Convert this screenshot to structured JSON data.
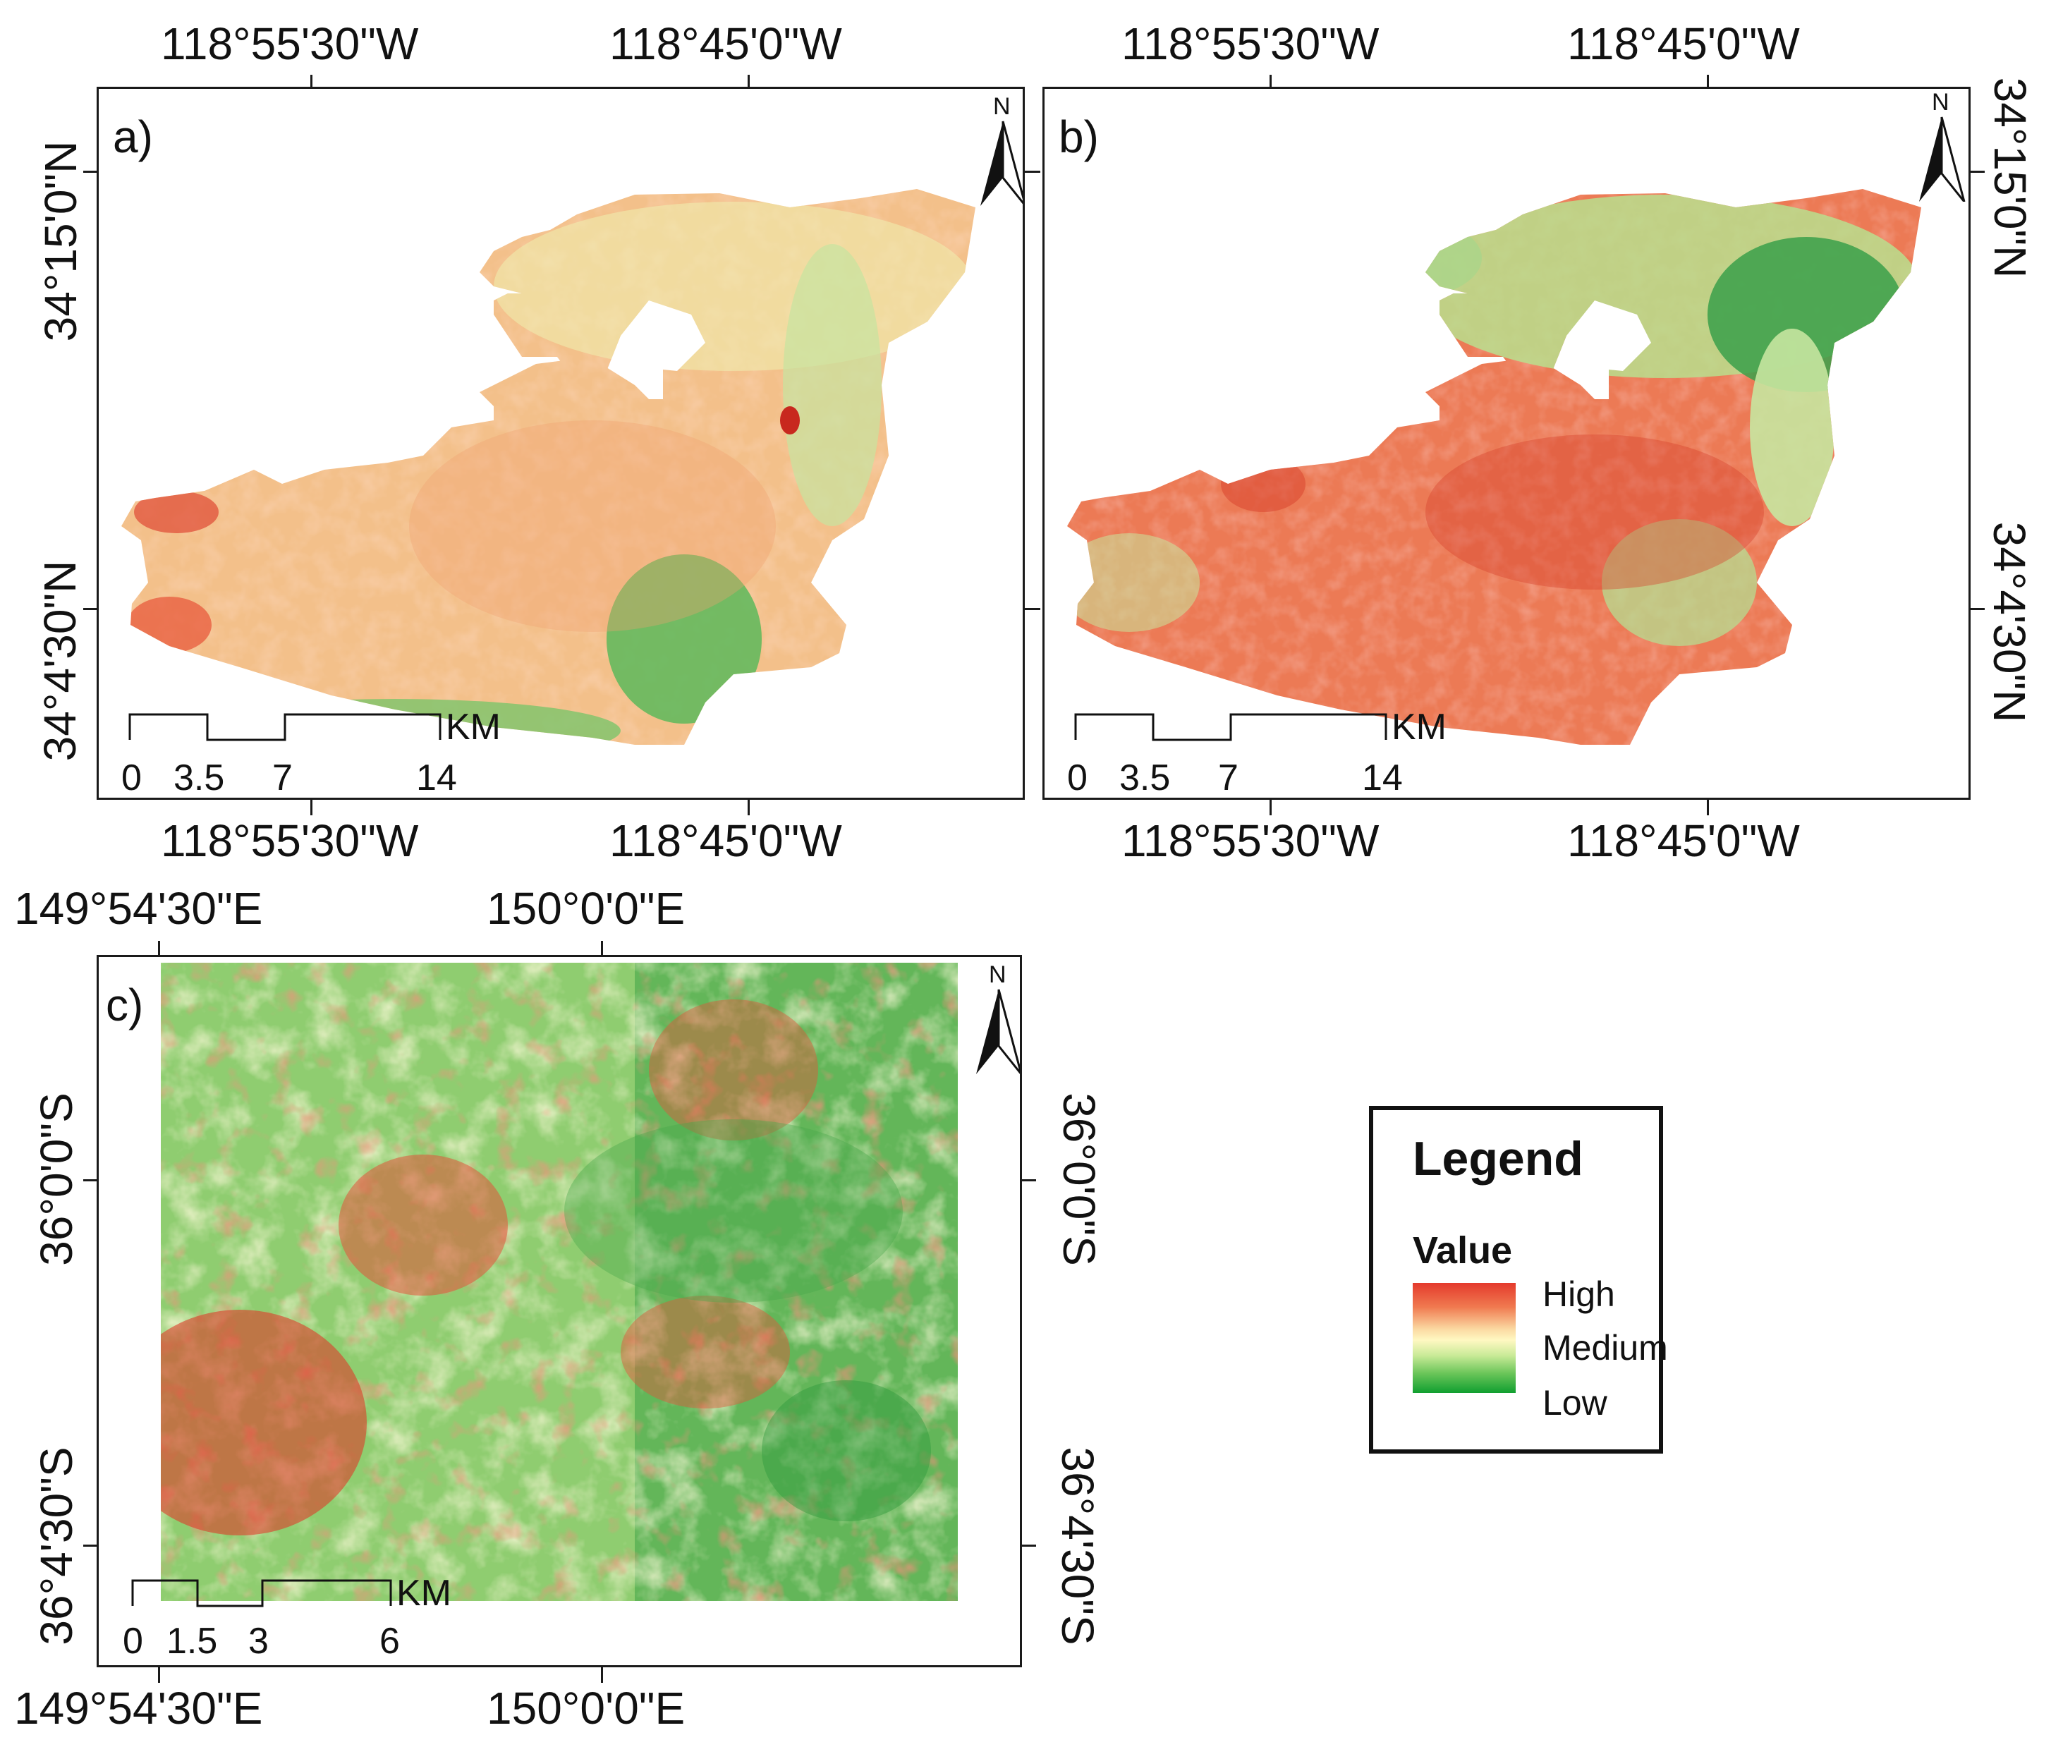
{
  "panels": {
    "a": {
      "label": "a)",
      "top_coords": [
        "118°55'30\"W",
        "118°45'0\"W"
      ],
      "bottom_coords": [
        "118°55'30\"W",
        "118°45'0\"W"
      ],
      "left_coords": [
        "34°15'0\"N",
        "34°4'30\"N"
      ],
      "scale": {
        "ticks": [
          "0",
          "3.5",
          "7",
          "14"
        ],
        "unit": "KM"
      },
      "north": "N"
    },
    "b": {
      "label": "b)",
      "top_coords": [
        "118°55'30\"W",
        "118°45'0\"W"
      ],
      "bottom_coords": [
        "118°55'30\"W",
        "118°45'0\"W"
      ],
      "right_coords": [
        "34°15'0\"N",
        "34°4'30\"N"
      ],
      "scale": {
        "ticks": [
          "0",
          "3.5",
          "7",
          "14"
        ],
        "unit": "KM"
      },
      "north": "N"
    },
    "c": {
      "label": "c)",
      "top_coords": [
        "149°54'30\"E",
        "150°0'0\"E"
      ],
      "bottom_coords": [
        "149°54'30\"E",
        "150°0'0\"E"
      ],
      "left_coords": [
        "36°0'0\"S",
        "36°4'30\"S"
      ],
      "right_coords": [
        "36°0'0\"S",
        "36°4'30\"S"
      ],
      "scale": {
        "ticks": [
          "0",
          "1.5",
          "3",
          "6"
        ],
        "unit": "KM"
      },
      "north": "N"
    }
  },
  "legend": {
    "title": "Legend",
    "value_title": "Value",
    "high": "High",
    "medium": "Medium",
    "low": "Low",
    "colors": {
      "high": "#e43a2c",
      "medium": "#fff8c2",
      "low": "#109f30"
    }
  }
}
